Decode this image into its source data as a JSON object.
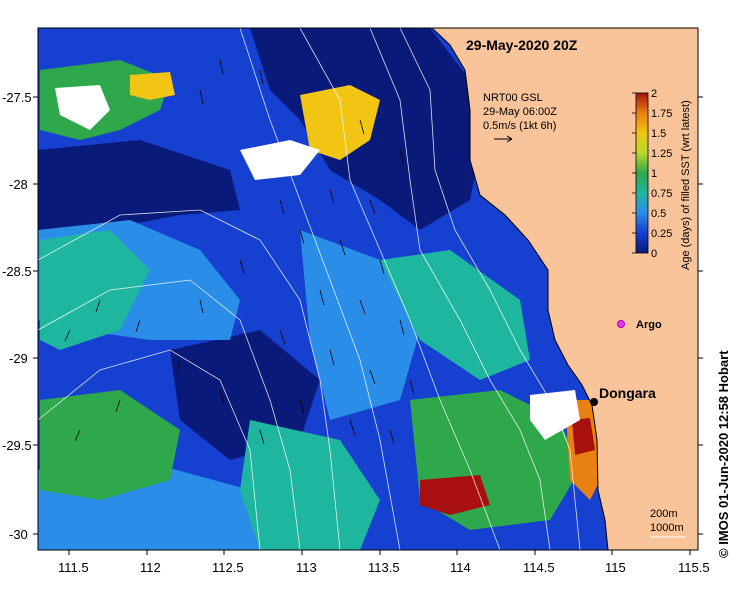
{
  "map": {
    "date_title": "29-May-2020 20Z",
    "x_ticks": [
      "111.5",
      "112",
      "112.5",
      "113",
      "113.5",
      "114",
      "114.5",
      "115",
      "115.5"
    ],
    "y_ticks": [
      "-27.5",
      "-28",
      "-28.5",
      "-29",
      "-29.5",
      "-30"
    ],
    "current_note": {
      "line1": "NRT00 GSL",
      "line2": "29-May 06:00Z",
      "line3": "0.5m/s (1kt 6h)"
    },
    "places": {
      "dongara": "Dongara",
      "argo": "Argo"
    },
    "depth_legend": {
      "shallow": "200m",
      "deep": "1000m"
    },
    "colorbar": {
      "label": "Age (days) of filled SST (wrt latest)",
      "ticks": [
        "2",
        "1.75",
        "1.5",
        "1.25",
        "1",
        "0.75",
        "0.5",
        "0.25",
        "0"
      ],
      "range": [
        0,
        2
      ]
    },
    "credit": "© IMOS 01-Jun-2020 12:58 Hobart",
    "colors": {
      "land": "#f9c49a",
      "age_0": "#0a1a7a",
      "age_0_25": "#1540d0",
      "age_0_5": "#2a8ee8",
      "age_0_75": "#1fb6a0",
      "age_1": "#2ea84a",
      "age_1_25": "#b8d82a",
      "age_1_5": "#f2c414",
      "age_1_75": "#e88012",
      "age_2": "#a81010",
      "argo_marker": "#e23cf0",
      "contour": "#ffffff"
    }
  }
}
